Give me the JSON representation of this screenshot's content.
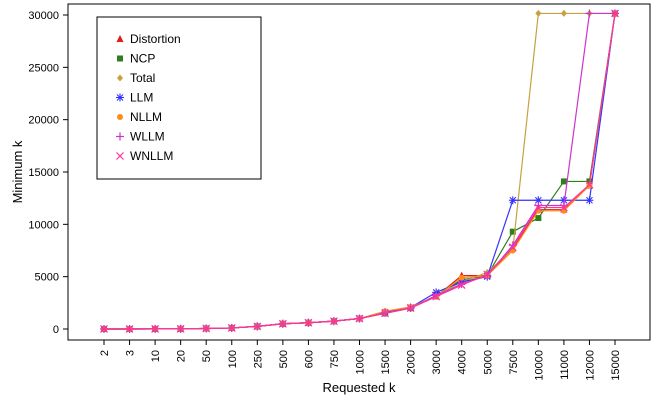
{
  "chart_data": {
    "type": "line",
    "title": "",
    "xlabel": "Requested k",
    "ylabel": "Minimum k",
    "categories": [
      "2",
      "3",
      "10",
      "20",
      "50",
      "100",
      "250",
      "500",
      "600",
      "750",
      "1000",
      "1500",
      "2000",
      "3000",
      "4000",
      "5000",
      "7500",
      "10000",
      "11000",
      "12000",
      "15000"
    ],
    "ylim": [
      0,
      30000
    ],
    "yticks": [
      0,
      5000,
      10000,
      15000,
      20000,
      25000,
      30000
    ],
    "grid": false,
    "legend_position": "top-left",
    "series": [
      {
        "name": "Distortion",
        "color": "#e41a1c",
        "marker": "triangle",
        "values": [
          2,
          3,
          10,
          20,
          50,
          100,
          250,
          500,
          600,
          750,
          1000,
          1500,
          2000,
          3100,
          5100,
          5100,
          7700,
          11400,
          11400,
          13700,
          30150
        ]
      },
      {
        "name": "NCP",
        "color": "#2f7d1f",
        "marker": "square",
        "values": [
          2,
          3,
          10,
          20,
          50,
          100,
          250,
          500,
          600,
          750,
          1000,
          1500,
          2000,
          3200,
          4700,
          5100,
          9300,
          10600,
          14100,
          14100,
          30150
        ]
      },
      {
        "name": "Total",
        "color": "#c8a040",
        "marker": "diamond",
        "values": [
          2,
          3,
          10,
          20,
          50,
          100,
          250,
          500,
          600,
          750,
          1000,
          1500,
          2000,
          3200,
          4500,
          5400,
          7600,
          30150,
          30150,
          30150,
          30150
        ]
      },
      {
        "name": "LLM",
        "color": "#3333ff",
        "marker": "asterisk",
        "values": [
          2,
          3,
          10,
          20,
          50,
          100,
          250,
          500,
          600,
          750,
          1000,
          1600,
          2050,
          3500,
          4500,
          5000,
          12300,
          12300,
          12300,
          12300,
          30150
        ]
      },
      {
        "name": "NLLM",
        "color": "#ff8c1a",
        "marker": "circle",
        "values": [
          2,
          3,
          10,
          20,
          50,
          100,
          250,
          500,
          600,
          750,
          1000,
          1700,
          2100,
          3100,
          4900,
          5100,
          7500,
          11300,
          11300,
          13700,
          30150
        ]
      },
      {
        "name": "WLLM",
        "color": "#cc33cc",
        "marker": "plus",
        "values": [
          2,
          3,
          10,
          20,
          50,
          100,
          250,
          500,
          600,
          750,
          1000,
          1550,
          2000,
          3200,
          4300,
          5100,
          8000,
          11800,
          11800,
          30150,
          30150
        ]
      },
      {
        "name": "WNLLM",
        "color": "#ff3399",
        "marker": "cross",
        "values": [
          2,
          3,
          10,
          20,
          50,
          100,
          250,
          500,
          600,
          750,
          1000,
          1500,
          2000,
          3100,
          4200,
          5200,
          7800,
          11600,
          11600,
          13800,
          30150
        ]
      }
    ]
  }
}
